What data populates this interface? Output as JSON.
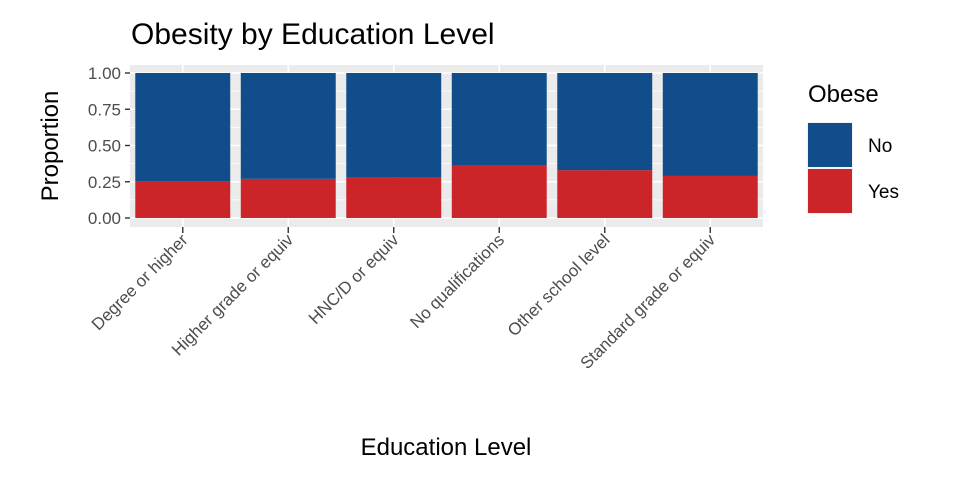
{
  "chart_data": {
    "type": "bar",
    "stacked": true,
    "title": "Obesity by Education Level",
    "xlabel": "Education Level",
    "ylabel": "Proportion",
    "ylim": [
      0,
      1
    ],
    "yticks": [
      "0.00",
      "0.25",
      "0.50",
      "0.75",
      "1.00"
    ],
    "ytick_values": [
      0,
      0.25,
      0.5,
      0.75,
      1
    ],
    "categories": [
      "Degree or higher",
      "Higher grade or equiv",
      "HNC/D or equiv",
      "No qualifications",
      "Other school level",
      "Standard grade or equiv"
    ],
    "series": [
      {
        "name": "Yes",
        "color": "#CC2529",
        "values": [
          0.25,
          0.27,
          0.28,
          0.36,
          0.33,
          0.29
        ]
      },
      {
        "name": "No",
        "color": "#114D8A",
        "values": [
          0.75,
          0.73,
          0.72,
          0.64,
          0.67,
          0.71
        ]
      }
    ],
    "legend": {
      "title": "Obese",
      "position": "right",
      "entries": [
        {
          "label": "No",
          "color": "#114D8A"
        },
        {
          "label": "Yes",
          "color": "#CC2529"
        }
      ]
    },
    "grid": true,
    "panel_background": "#EBEBEB"
  }
}
